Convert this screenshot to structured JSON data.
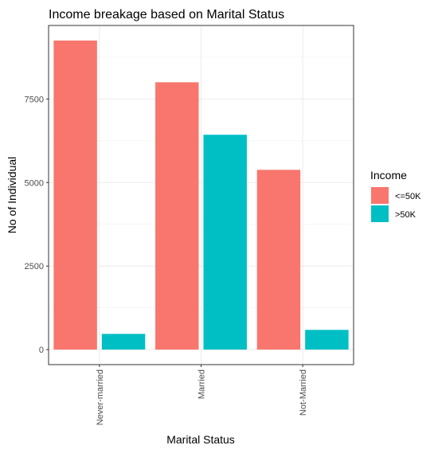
{
  "chart_data": {
    "type": "bar",
    "title": "Income breakage based on Marital Status",
    "xlabel": "Marital Status",
    "ylabel": "No of Individual",
    "categories": [
      "Never-married",
      "Married",
      "Not-Married"
    ],
    "series": [
      {
        "name": "<=50K",
        "values": [
          9250,
          8000,
          5380
        ],
        "color": "#F8766D"
      },
      {
        "name": ">50K",
        "values": [
          470,
          6430,
          590
        ],
        "color": "#00BFC4"
      }
    ],
    "yticks": [
      0,
      2500,
      5000,
      7500
    ],
    "ylim": [
      -450,
      9700
    ],
    "grid": true,
    "legend": {
      "title": "Income",
      "position": "right"
    }
  }
}
